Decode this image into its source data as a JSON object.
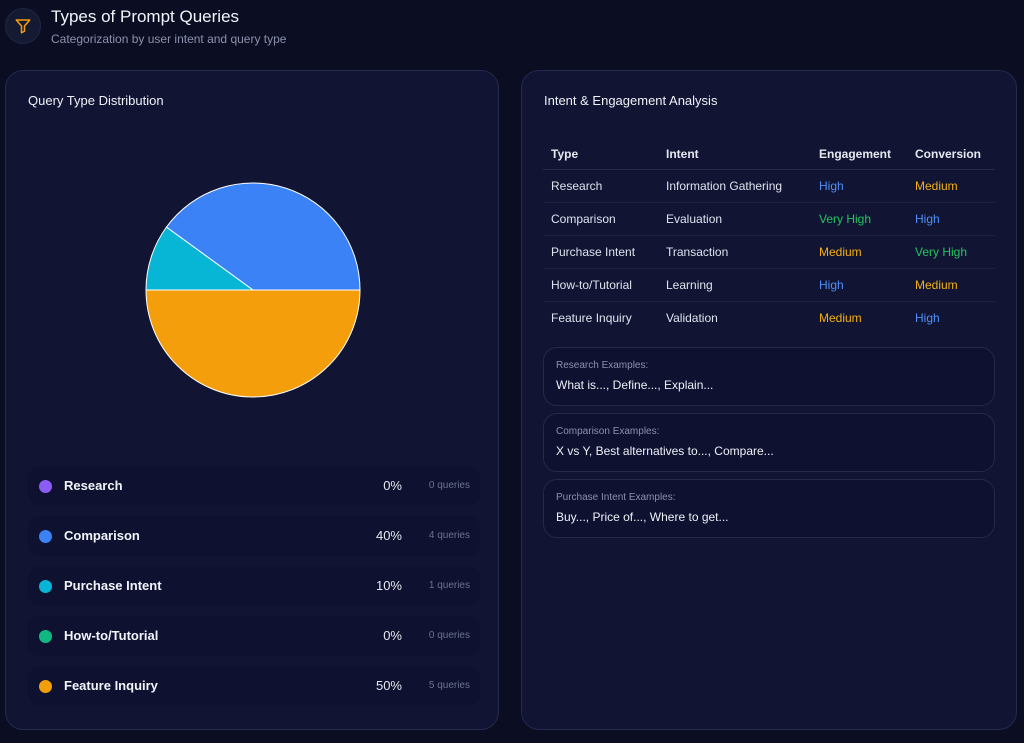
{
  "header": {
    "icon": "filter-icon",
    "title": "Types of Prompt Queries",
    "subtitle": "Categorization by user intent and query type"
  },
  "distribution": {
    "title": "Query Type Distribution",
    "legend": [
      {
        "label": "Research",
        "percent": "0%",
        "count": "0 queries",
        "color": "#8b5cf6"
      },
      {
        "label": "Comparison",
        "percent": "40%",
        "count": "4 queries",
        "color": "#3b82f6"
      },
      {
        "label": "Purchase Intent",
        "percent": "10%",
        "count": "1 queries",
        "color": "#06b6d4"
      },
      {
        "label": "How-to/Tutorial",
        "percent": "0%",
        "count": "0 queries",
        "color": "#10b981"
      },
      {
        "label": "Feature Inquiry",
        "percent": "50%",
        "count": "5 queries",
        "color": "#f59e0b"
      }
    ]
  },
  "chart_data": {
    "type": "pie",
    "categories": [
      "Research",
      "Comparison",
      "Purchase Intent",
      "How-to/Tutorial",
      "Feature Inquiry"
    ],
    "values": [
      0,
      4,
      1,
      0,
      5
    ],
    "colors": [
      "#8b5cf6",
      "#3b82f6",
      "#06b6d4",
      "#10b981",
      "#f59e0b"
    ]
  },
  "analysis": {
    "title": "Intent & Engagement Analysis",
    "columns": [
      "Type",
      "Intent",
      "Engagement",
      "Conversion"
    ],
    "rows": [
      {
        "type": "Research",
        "intent": "Information Gathering",
        "engagement": "High",
        "conversion": "Medium"
      },
      {
        "type": "Comparison",
        "intent": "Evaluation",
        "engagement": "Very High",
        "conversion": "High"
      },
      {
        "type": "Purchase Intent",
        "intent": "Transaction",
        "engagement": "Medium",
        "conversion": "Very High"
      },
      {
        "type": "How-to/Tutorial",
        "intent": "Learning",
        "engagement": "High",
        "conversion": "Medium"
      },
      {
        "type": "Feature Inquiry",
        "intent": "Validation",
        "engagement": "Medium",
        "conversion": "High"
      }
    ],
    "level_colors": {
      "High": "#4f8ff7",
      "Very High": "#22c55e",
      "Medium": "#f5b014"
    },
    "examples": [
      {
        "label": "Research Examples:",
        "text": "What is..., Define..., Explain..."
      },
      {
        "label": "Comparison Examples:",
        "text": "X vs Y, Best alternatives to..., Compare..."
      },
      {
        "label": "Purchase Intent Examples:",
        "text": "Buy..., Price of..., Where to get..."
      }
    ]
  }
}
